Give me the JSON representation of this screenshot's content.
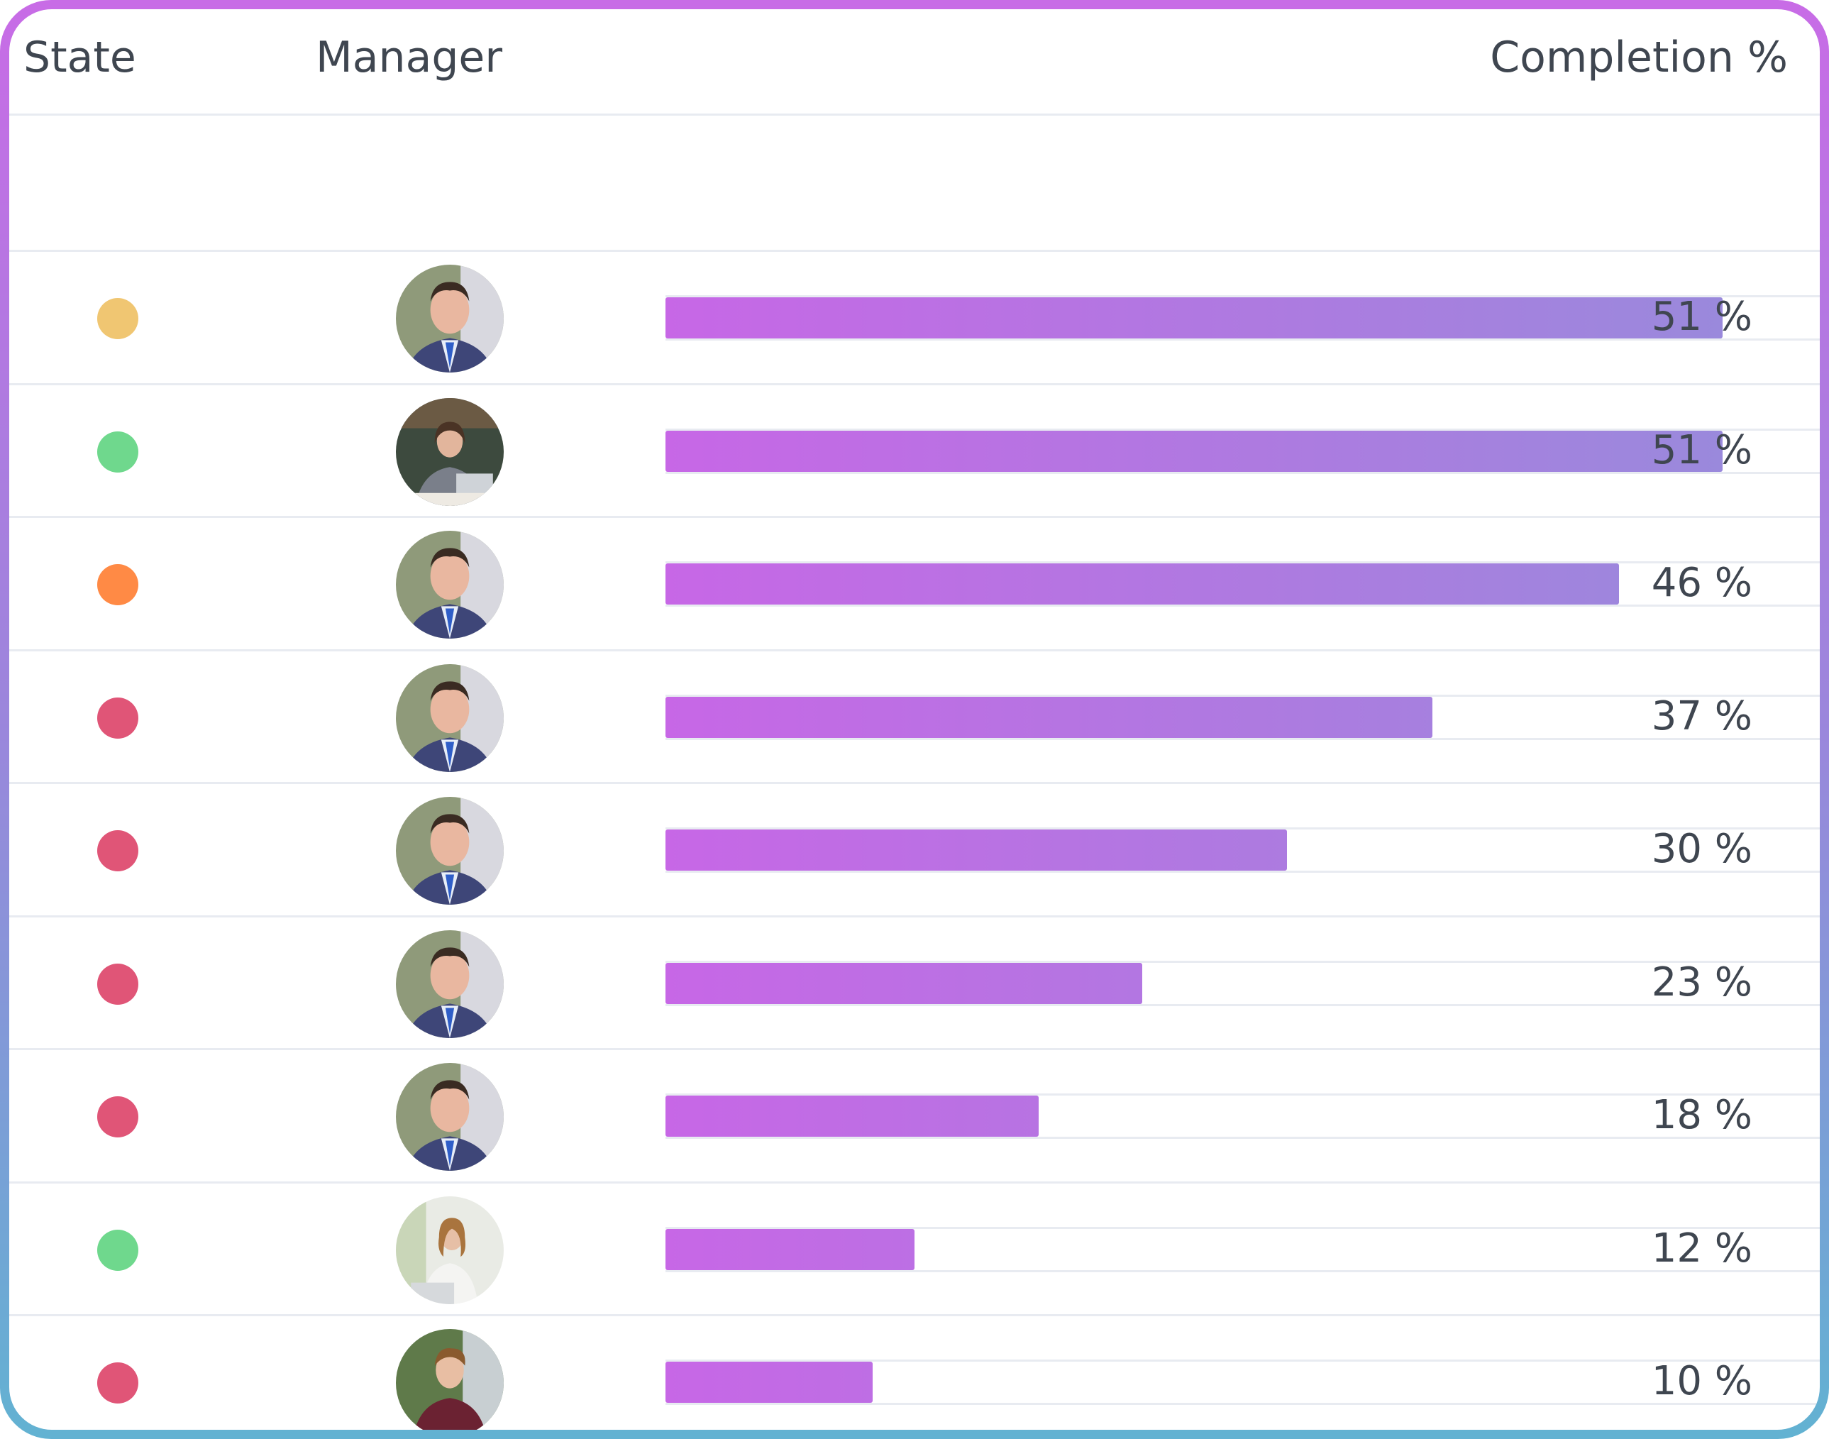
{
  "header": {
    "state_label": "State",
    "manager_label": "Manager",
    "completion_label": "Completion %"
  },
  "colors": {
    "yellow": "#f0c672",
    "green": "#6fd88d",
    "orange": "#ff8a45",
    "red": "#e05577",
    "bar_start": "#c767e6",
    "bar_end": "#9a89dc"
  },
  "rows": [
    {
      "state": "yellow",
      "manager": "man-suit-avatar",
      "completion": 51,
      "completion_label": "51 %"
    },
    {
      "state": "green",
      "manager": "woman-laptop-avatar",
      "completion": 51,
      "completion_label": "51 %"
    },
    {
      "state": "orange",
      "manager": "man-suit-avatar",
      "completion": 46,
      "completion_label": "46 %"
    },
    {
      "state": "red",
      "manager": "man-suit-avatar",
      "completion": 37,
      "completion_label": "37 %"
    },
    {
      "state": "red",
      "manager": "man-suit-avatar",
      "completion": 30,
      "completion_label": "30 %"
    },
    {
      "state": "red",
      "manager": "man-suit-avatar",
      "completion": 23,
      "completion_label": "23 %"
    },
    {
      "state": "red",
      "manager": "man-suit-avatar",
      "completion": 18,
      "completion_label": "18 %"
    },
    {
      "state": "green",
      "manager": "woman-office-avatar",
      "completion": 12,
      "completion_label": "12 %"
    },
    {
      "state": "red",
      "manager": "man-burgundy-avatar",
      "completion": 10,
      "completion_label": "10 %"
    }
  ]
}
